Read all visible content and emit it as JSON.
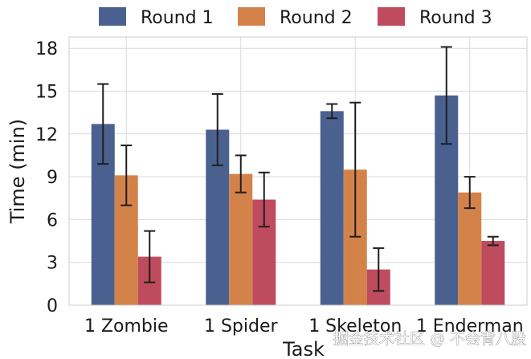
{
  "chart_data": {
    "type": "bar",
    "categories": [
      "1 Zombie",
      "1 Spider",
      "1 Skeleton",
      "1 Enderman"
    ],
    "series": [
      {
        "name": "Round 1",
        "color": "#4a6190",
        "values": [
          12.7,
          12.3,
          13.6,
          14.7
        ],
        "errors": [
          2.8,
          2.5,
          0.5,
          3.4
        ]
      },
      {
        "name": "Round 2",
        "color": "#d3834a",
        "values": [
          9.1,
          9.2,
          9.5,
          7.9
        ],
        "errors": [
          2.1,
          1.3,
          4.7,
          1.1
        ]
      },
      {
        "name": "Round 3",
        "color": "#bf4b5e",
        "values": [
          3.4,
          7.4,
          2.5,
          4.5
        ],
        "errors": [
          1.8,
          1.9,
          1.5,
          0.3
        ]
      }
    ],
    "xlabel": "Task",
    "ylabel": "Time (min)",
    "ylim": [
      0,
      18.8
    ],
    "yticks": [
      0,
      3,
      6,
      9,
      12,
      15,
      18
    ],
    "grid": true,
    "legend_position": "top"
  },
  "watermark": "掘金技术社区 @ 不会背八股"
}
